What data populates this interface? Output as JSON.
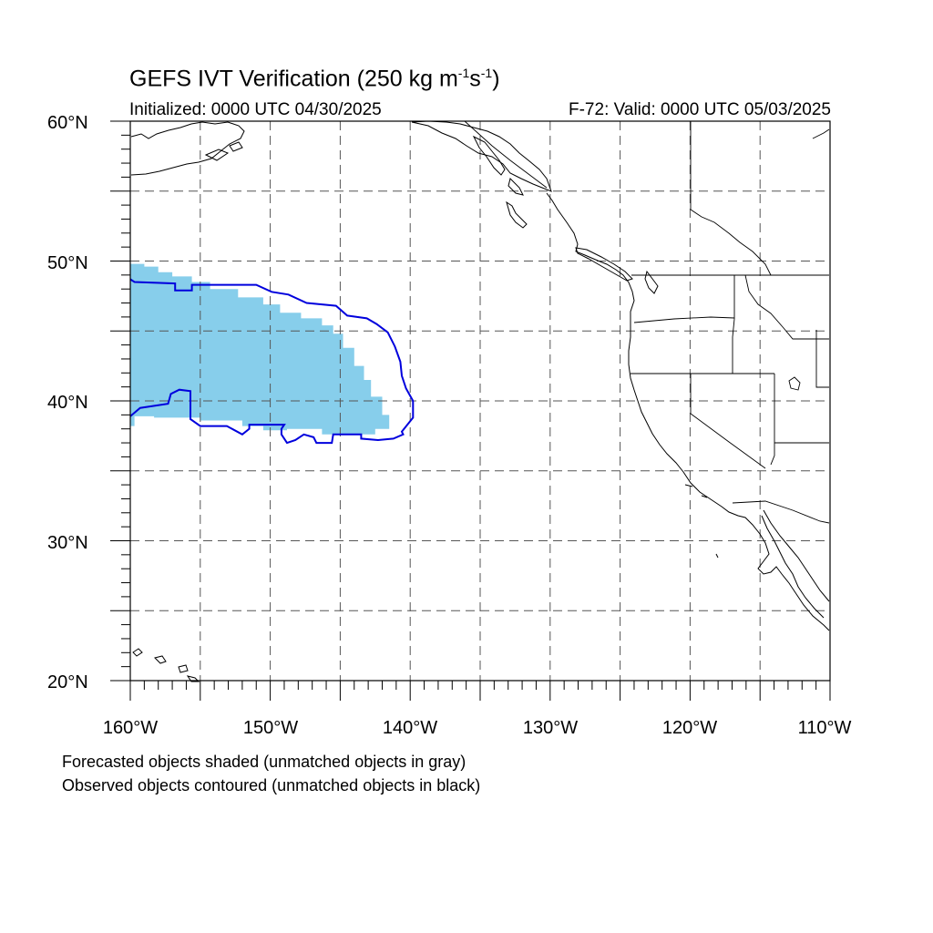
{
  "title": {
    "main": "GEFS IVT Verification (250 kg m",
    "exp1": "-1",
    "mid": "s",
    "exp2": "-1",
    "end": ")"
  },
  "subtitle_left": "Initialized: 0000 UTC 04/30/2025",
  "subtitle_right": "F-72: Valid: 0000 UTC 05/03/2025",
  "notes": [
    "Forecasted objects shaded (unmatched objects in gray)",
    "Observed objects contoured (unmatched objects in black)"
  ],
  "lat_labels": [
    "60°N",
    "50°N",
    "40°N",
    "30°N",
    "20°N"
  ],
  "lon_labels": [
    "160°W",
    "150°W",
    "140°W",
    "130°W",
    "120°W",
    "110°W"
  ],
  "map_extent": {
    "lon_min": -160,
    "lon_max": -110,
    "lat_min": 20,
    "lat_max": 60
  },
  "colors": {
    "forecast_fill": "#87ceeb",
    "observed_contour": "#0000dd",
    "coastline": "#000000",
    "grid": "#555555"
  },
  "forecast_object_outline": [
    [
      -160,
      49.8
    ],
    [
      -159.0,
      49.8
    ],
    [
      -159.0,
      49.6
    ],
    [
      -158.0,
      49.6
    ],
    [
      -158.0,
      49.2
    ],
    [
      -157.0,
      49.2
    ],
    [
      -157.0,
      48.9
    ],
    [
      -155.6,
      48.9
    ],
    [
      -155.6,
      48.5
    ],
    [
      -154.3,
      48.5
    ],
    [
      -154.3,
      48.0
    ],
    [
      -152.3,
      48.0
    ],
    [
      -152.3,
      47.4
    ],
    [
      -150.5,
      47.4
    ],
    [
      -150.5,
      46.9
    ],
    [
      -149.3,
      46.9
    ],
    [
      -149.3,
      46.3
    ],
    [
      -147.8,
      46.3
    ],
    [
      -147.8,
      45.9
    ],
    [
      -146.3,
      45.9
    ],
    [
      -146.3,
      45.4
    ],
    [
      -145.5,
      45.4
    ],
    [
      -145.5,
      44.8
    ],
    [
      -144.8,
      44.8
    ],
    [
      -144.8,
      43.8
    ],
    [
      -144.0,
      43.8
    ],
    [
      -144.0,
      42.5
    ],
    [
      -143.3,
      42.5
    ],
    [
      -143.3,
      41.5
    ],
    [
      -142.8,
      41.5
    ],
    [
      -142.8,
      40.3
    ],
    [
      -142.0,
      40.3
    ],
    [
      -142.0,
      39.0
    ],
    [
      -141.5,
      39.0
    ],
    [
      -141.5,
      38.0
    ],
    [
      -142.5,
      38.0
    ],
    [
      -142.5,
      37.6
    ],
    [
      -146.3,
      37.6
    ],
    [
      -146.3,
      38.0
    ],
    [
      -148.8,
      38.0
    ],
    [
      -148.8,
      37.9
    ],
    [
      -150.5,
      37.9
    ],
    [
      -150.5,
      38.2
    ],
    [
      -152.0,
      38.2
    ],
    [
      -152.0,
      38.6
    ],
    [
      -155.0,
      38.6
    ],
    [
      -155.0,
      38.8
    ],
    [
      -158.3,
      38.8
    ],
    [
      -158.3,
      38.9
    ],
    [
      -159.7,
      38.9
    ],
    [
      -159.7,
      38.2
    ],
    [
      -160,
      38.2
    ]
  ],
  "observed_contour": [
    [
      -160,
      48.7
    ],
    [
      -159.7,
      48.5
    ],
    [
      -156.8,
      48.4
    ],
    [
      -156.8,
      47.9
    ],
    [
      -155.6,
      47.9
    ],
    [
      -155.6,
      48.3
    ],
    [
      -151.0,
      48.3
    ],
    [
      -149.9,
      47.8
    ],
    [
      -148.7,
      47.6
    ],
    [
      -147.4,
      47.0
    ],
    [
      -145.3,
      46.8
    ],
    [
      -144.5,
      46.1
    ],
    [
      -143.1,
      45.9
    ],
    [
      -142.4,
      45.5
    ],
    [
      -141.6,
      44.9
    ],
    [
      -141.1,
      43.9
    ],
    [
      -140.7,
      42.8
    ],
    [
      -140.6,
      41.8
    ],
    [
      -140.3,
      40.9
    ],
    [
      -139.8,
      40.0
    ],
    [
      -139.8,
      38.8
    ],
    [
      -140.6,
      37.8
    ],
    [
      -140.5,
      37.6
    ],
    [
      -141.2,
      37.3
    ],
    [
      -142.3,
      37.2
    ],
    [
      -143.5,
      37.3
    ],
    [
      -143.5,
      37.6
    ],
    [
      -145.5,
      37.6
    ],
    [
      -145.6,
      37.0
    ],
    [
      -146.7,
      37.0
    ],
    [
      -146.9,
      37.4
    ],
    [
      -147.6,
      37.6
    ],
    [
      -148.2,
      37.2
    ],
    [
      -148.8,
      37.0
    ],
    [
      -149.2,
      37.6
    ],
    [
      -149.2,
      37.8
    ],
    [
      -149.2,
      38.0
    ],
    [
      -149.0,
      38.3
    ],
    [
      -151.5,
      38.3
    ],
    [
      -151.5,
      38.0
    ],
    [
      -152.0,
      37.6
    ],
    [
      -153.1,
      38.2
    ],
    [
      -155.0,
      38.2
    ],
    [
      -155.7,
      38.7
    ],
    [
      -155.7,
      40.7
    ],
    [
      -156.5,
      40.8
    ],
    [
      -157.1,
      40.5
    ],
    [
      -157.3,
      39.8
    ],
    [
      -159.3,
      39.5
    ],
    [
      -160,
      38.9
    ]
  ]
}
